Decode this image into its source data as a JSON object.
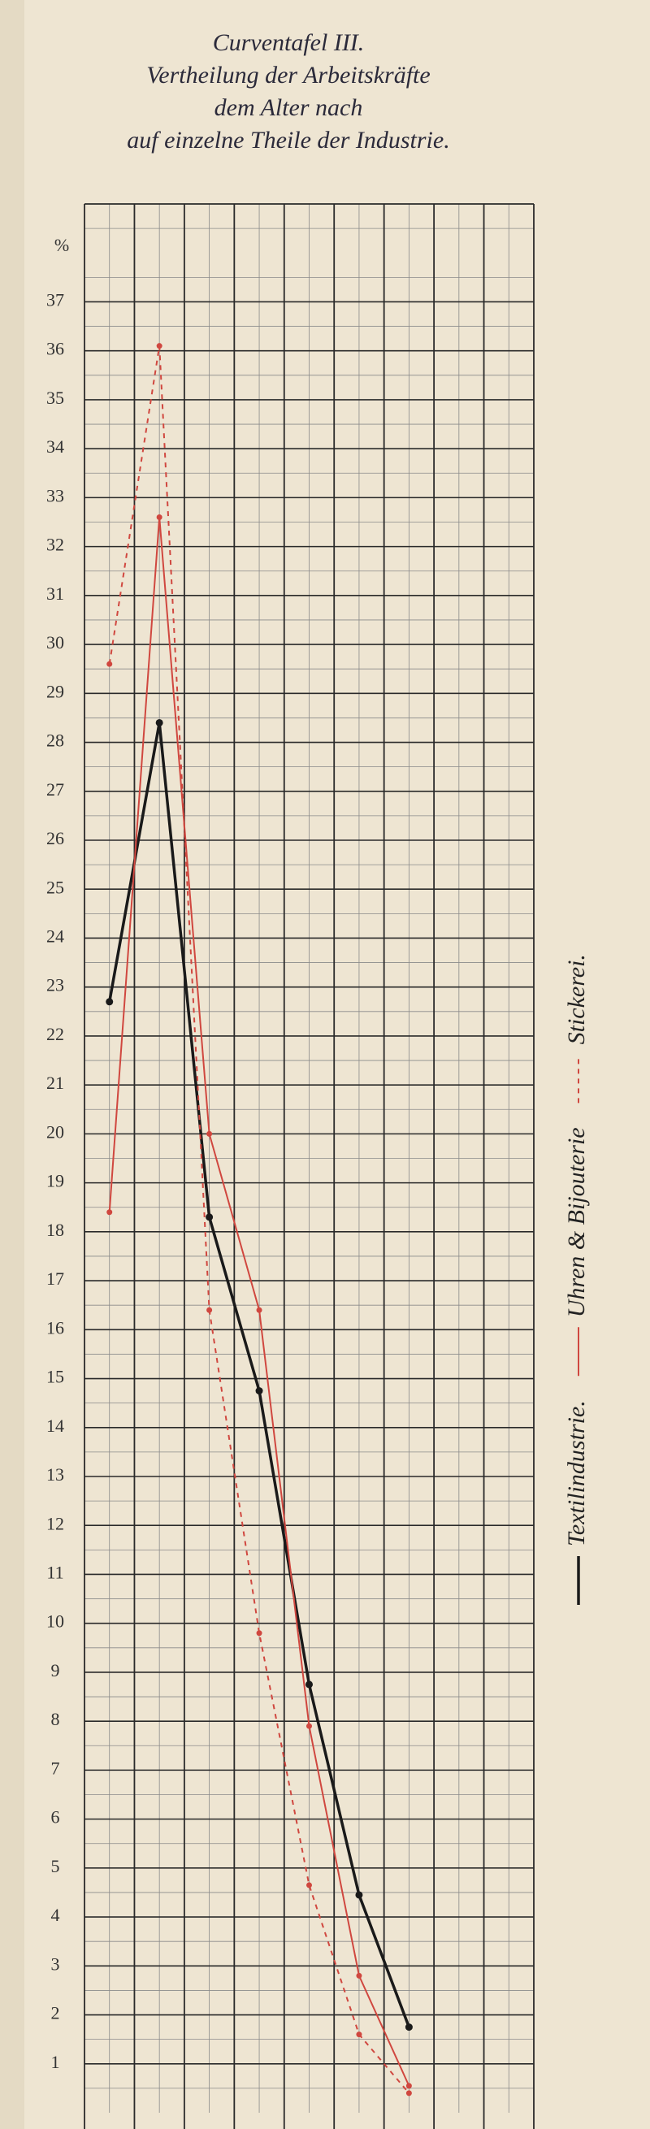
{
  "chart_data": {
    "type": "line",
    "title": [
      "Curventafel III.",
      "Vertheilung der Arbeitskräfte",
      "dem Alter nach",
      "auf einzelne Theile der Industrie."
    ],
    "ylabel": "%",
    "categories": [
      null,
      null,
      null,
      null,
      null,
      null,
      null,
      null,
      null
    ],
    "series": [
      {
        "name": "Textilindustrie.",
        "color": "#1a1a1a",
        "style": "solid",
        "width": 3.5,
        "values": [
          22.7,
          28.4,
          18.3,
          14.75,
          8.75,
          4.45,
          1.75,
          null,
          null
        ]
      },
      {
        "name": "Uhren & Bijouterie",
        "color": "#d0473f",
        "style": "solid",
        "width": 2,
        "values": [
          18.4,
          32.6,
          20.0,
          16.4,
          7.9,
          2.8,
          0.55,
          null,
          null
        ]
      },
      {
        "name": "Stickerei.",
        "color": "#d0473f",
        "style": "dashed",
        "width": 2,
        "values": [
          29.6,
          36.1,
          16.4,
          9.8,
          4.65,
          1.6,
          0.4,
          null,
          null
        ]
      }
    ],
    "ylim": [
      0,
      39
    ],
    "yticks": [
      1,
      2,
      3,
      4,
      5,
      6,
      7,
      8,
      9,
      10,
      11,
      12,
      13,
      14,
      15,
      16,
      17,
      18,
      19,
      20,
      21,
      22,
      23,
      24,
      25,
      26,
      27,
      28,
      29,
      30,
      31,
      32,
      33,
      34,
      35,
      36,
      37
    ],
    "grid": true,
    "legend": "right"
  }
}
